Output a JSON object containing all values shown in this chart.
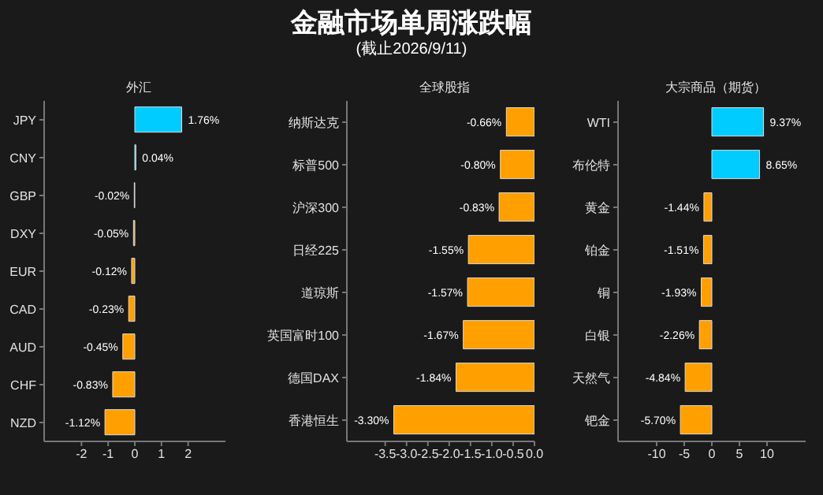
{
  "chart_data": [
    {
      "type": "bar",
      "orientation": "horizontal",
      "title": "外汇",
      "annotations": [
        "金融市场单周涨跌幅",
        "(截止2026/9/11)"
      ],
      "categories": [
        "JPY",
        "CNY",
        "GBP",
        "DXY",
        "EUR",
        "CAD",
        "AUD",
        "CHF",
        "NZD"
      ],
      "values": [
        1.76,
        0.04,
        -0.02,
        -0.05,
        -0.12,
        -0.23,
        -0.45,
        -0.83,
        -1.12
      ],
      "colors": [
        "#00ccff",
        "#00ccff",
        "#ff9f00",
        "#ff9f00",
        "#ff9f00",
        "#ff9f00",
        "#ff9f00",
        "#ff9f00",
        "#ff9f00"
      ],
      "value_labels": [
        "1.76%",
        "0.04%",
        "-0.02%",
        "-0.05%",
        "-0.12%",
        "-0.23%",
        "-0.45%",
        "-0.83%",
        "-1.12%"
      ],
      "xlim": [
        -3.4,
        3.4
      ],
      "xticks": [
        -2,
        -1,
        0,
        1,
        2
      ],
      "grid": false,
      "legend": false
    },
    {
      "type": "bar",
      "orientation": "horizontal",
      "title": "全球股指",
      "categories": [
        "纳斯达克",
        "标普500",
        "沪深300",
        "日经225",
        "道琼斯",
        "英国富时100",
        "德国DAX",
        "香港恒生"
      ],
      "values": [
        -0.66,
        -0.8,
        -0.83,
        -1.55,
        -1.57,
        -1.67,
        -1.84,
        -3.3
      ],
      "colors": [
        "#ff9f00",
        "#ff9f00",
        "#ff9f00",
        "#ff9f00",
        "#ff9f00",
        "#ff9f00",
        "#ff9f00",
        "#ff9f00"
      ],
      "value_labels": [
        "-0.66%",
        "-0.80%",
        "-0.83%",
        "-1.55%",
        "-1.57%",
        "-1.67%",
        "-1.84%",
        "-3.30%"
      ],
      "xlim": [
        -4.4,
        0
      ],
      "xticks": [
        -3.5,
        {
          "value": -3,
          "label": "-3.0"
        },
        -2.5,
        {
          "value": -2,
          "label": "-2.0"
        },
        -1.5,
        {
          "value": -1,
          "label": "-1.0"
        },
        -0.5,
        {
          "value": 0,
          "label": "0.0"
        }
      ],
      "grid": false,
      "legend": false
    },
    {
      "type": "bar",
      "orientation": "horizontal",
      "title": "大宗商品（期货）",
      "categories": [
        "WTI",
        "布伦特",
        "黄金",
        "铂金",
        "铜",
        "白银",
        "天然气",
        "钯金"
      ],
      "values": [
        9.37,
        8.65,
        -1.44,
        -1.51,
        -1.93,
        -2.26,
        -4.84,
        -5.7
      ],
      "colors": [
        "#00ccff",
        "#00ccff",
        "#ff9f00",
        "#ff9f00",
        "#ff9f00",
        "#ff9f00",
        "#ff9f00",
        "#ff9f00"
      ],
      "value_labels": [
        "9.37%",
        "8.65%",
        "-1.44%",
        "-1.51%",
        "-1.93%",
        "-2.26%",
        "-4.84%",
        "-5.70%"
      ],
      "xlim": [
        -17,
        17
      ],
      "xticks": [
        -10,
        -5,
        0,
        5,
        10
      ],
      "grid": false,
      "legend": false
    }
  ]
}
